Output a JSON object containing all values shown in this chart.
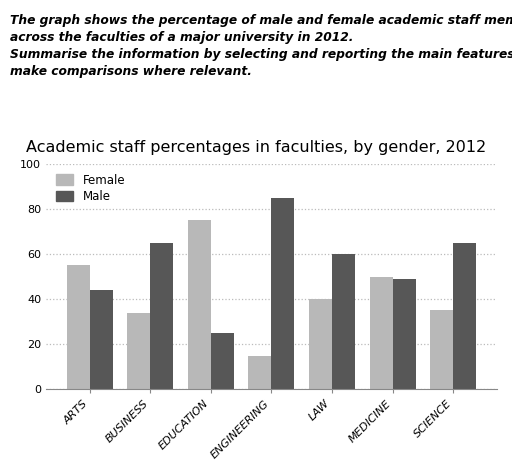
{
  "title": "Academic staff percentages in faculties, by gender, 2012",
  "header_line1": "The graph shows the percentage of male and female academic staff members",
  "header_line2": "across the faculties of a major university in 2012.",
  "header_line3": "Summarise the information by selecting and reporting the main features, and",
  "header_line4": "make comparisons where relevant.",
  "categories": [
    "ARTS",
    "BUSINESS",
    "EDUCATION",
    "ENGINEERING",
    "LAW",
    "MEDICINE",
    "SCIENCE"
  ],
  "female_values": [
    55,
    34,
    75,
    15,
    40,
    50,
    35
  ],
  "male_values": [
    44,
    65,
    25,
    85,
    60,
    49,
    65
  ],
  "female_color": "#b8b8b8",
  "male_color": "#575757",
  "ylim": [
    0,
    100
  ],
  "yticks": [
    0,
    20,
    40,
    60,
    80,
    100
  ],
  "background_color": "#ffffff",
  "grid_color": "#bbbbbb",
  "legend_labels": [
    "Female",
    "Male"
  ],
  "title_fontsize": 11.5,
  "header_fontsize": 8.8,
  "tick_fontsize": 8.0,
  "bar_width": 0.38
}
